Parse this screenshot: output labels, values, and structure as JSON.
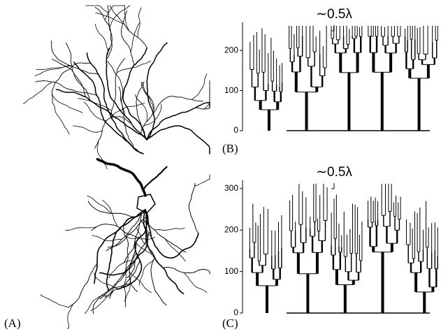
{
  "panels": [
    {
      "label": "(A)"
    },
    {
      "label": "(B)",
      "annotation": "∼0.5λ",
      "ylim": [
        0,
        270
      ],
      "yticks": [
        0,
        100,
        200
      ]
    },
    {
      "label": "(C)",
      "annotation": "∼0.5λ",
      "ylim": [
        0,
        320
      ],
      "yticks": [
        0,
        100,
        200,
        300
      ]
    }
  ]
}
